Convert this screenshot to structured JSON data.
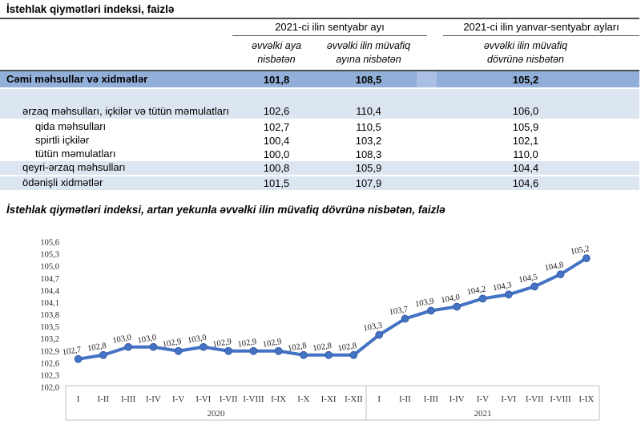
{
  "page": {
    "title": "İstehlak qiymətləri indeksi, faizlə"
  },
  "colors": {
    "total_row_bg": "#92AFD9",
    "total_row_spacer_bg": "#A9C0E4",
    "highlight_row_bg": "#DCE6F1",
    "chart_line": "#4472C4",
    "axis_box_border": "#BFBFBF"
  },
  "table": {
    "group_headers": [
      {
        "label": "2021-ci ilin sentyabr ayı"
      },
      {
        "label": "2021-ci ilin yanvar-sentyabr ayları"
      }
    ],
    "sub_headers": [
      "əvvəlki aya nisbətən",
      "əvvəlki ilin müvafiq ayına nisbətən",
      "əvvəlki ilin müvafiq dövrünə nisbətən"
    ],
    "rows": [
      {
        "label": "Cəmi məhsullar və xidmətlər",
        "values": [
          "101,8",
          "108,5",
          "105,2"
        ]
      },
      {
        "label": "ərzaq məhsulları, içkilər və tütün məmulatları",
        "values": [
          "102,6",
          "110,4",
          "106,0"
        ]
      },
      {
        "label": "qida məhsulları",
        "values": [
          "102,7",
          "110,5",
          "105,9"
        ]
      },
      {
        "label": "spirtli içkilər",
        "values": [
          "100,4",
          "103,2",
          "102,1"
        ]
      },
      {
        "label": "tütün məmulatları",
        "values": [
          "100,0",
          "108,3",
          "110,0"
        ]
      },
      {
        "label": "qeyri-ərzaq məhsulları",
        "values": [
          "100,8",
          "105,9",
          "104,4"
        ]
      },
      {
        "label": "ödənişli xidmətlər",
        "values": [
          "101,5",
          "107,9",
          "104,6"
        ]
      }
    ]
  },
  "chart_data": {
    "type": "line",
    "title": "İstehlak qiymətləri indeksi, artan yekunla əvvəlki ilin müvafiq dövrünə nisbətən, faizlə",
    "xlabel": "",
    "ylabel": "",
    "ylim": [
      102.0,
      105.6
    ],
    "ytick_step": 0.3,
    "grid": false,
    "legend_position": "none",
    "decimal_separator": ",",
    "line_color": "#4472C4",
    "groups": [
      {
        "year": "2020",
        "categories": [
          "I",
          "I-II",
          "I-III",
          "I-IV",
          "I-V",
          "I-VI",
          "I-VII",
          "I-VIII",
          "I-IX",
          "I-X",
          "I-XI",
          "I-XII"
        ],
        "values": [
          102.7,
          102.8,
          103.0,
          103.0,
          102.9,
          103.0,
          102.9,
          102.9,
          102.9,
          102.8,
          102.8,
          102.8
        ]
      },
      {
        "year": "2021",
        "categories": [
          "I",
          "I-II",
          "I-III",
          "I-IV",
          "I-V",
          "I-VI",
          "I-VII",
          "I-VIII",
          "I-IX"
        ],
        "values": [
          103.3,
          103.7,
          103.9,
          104.0,
          104.2,
          104.3,
          104.5,
          104.8,
          105.2
        ]
      }
    ]
  }
}
